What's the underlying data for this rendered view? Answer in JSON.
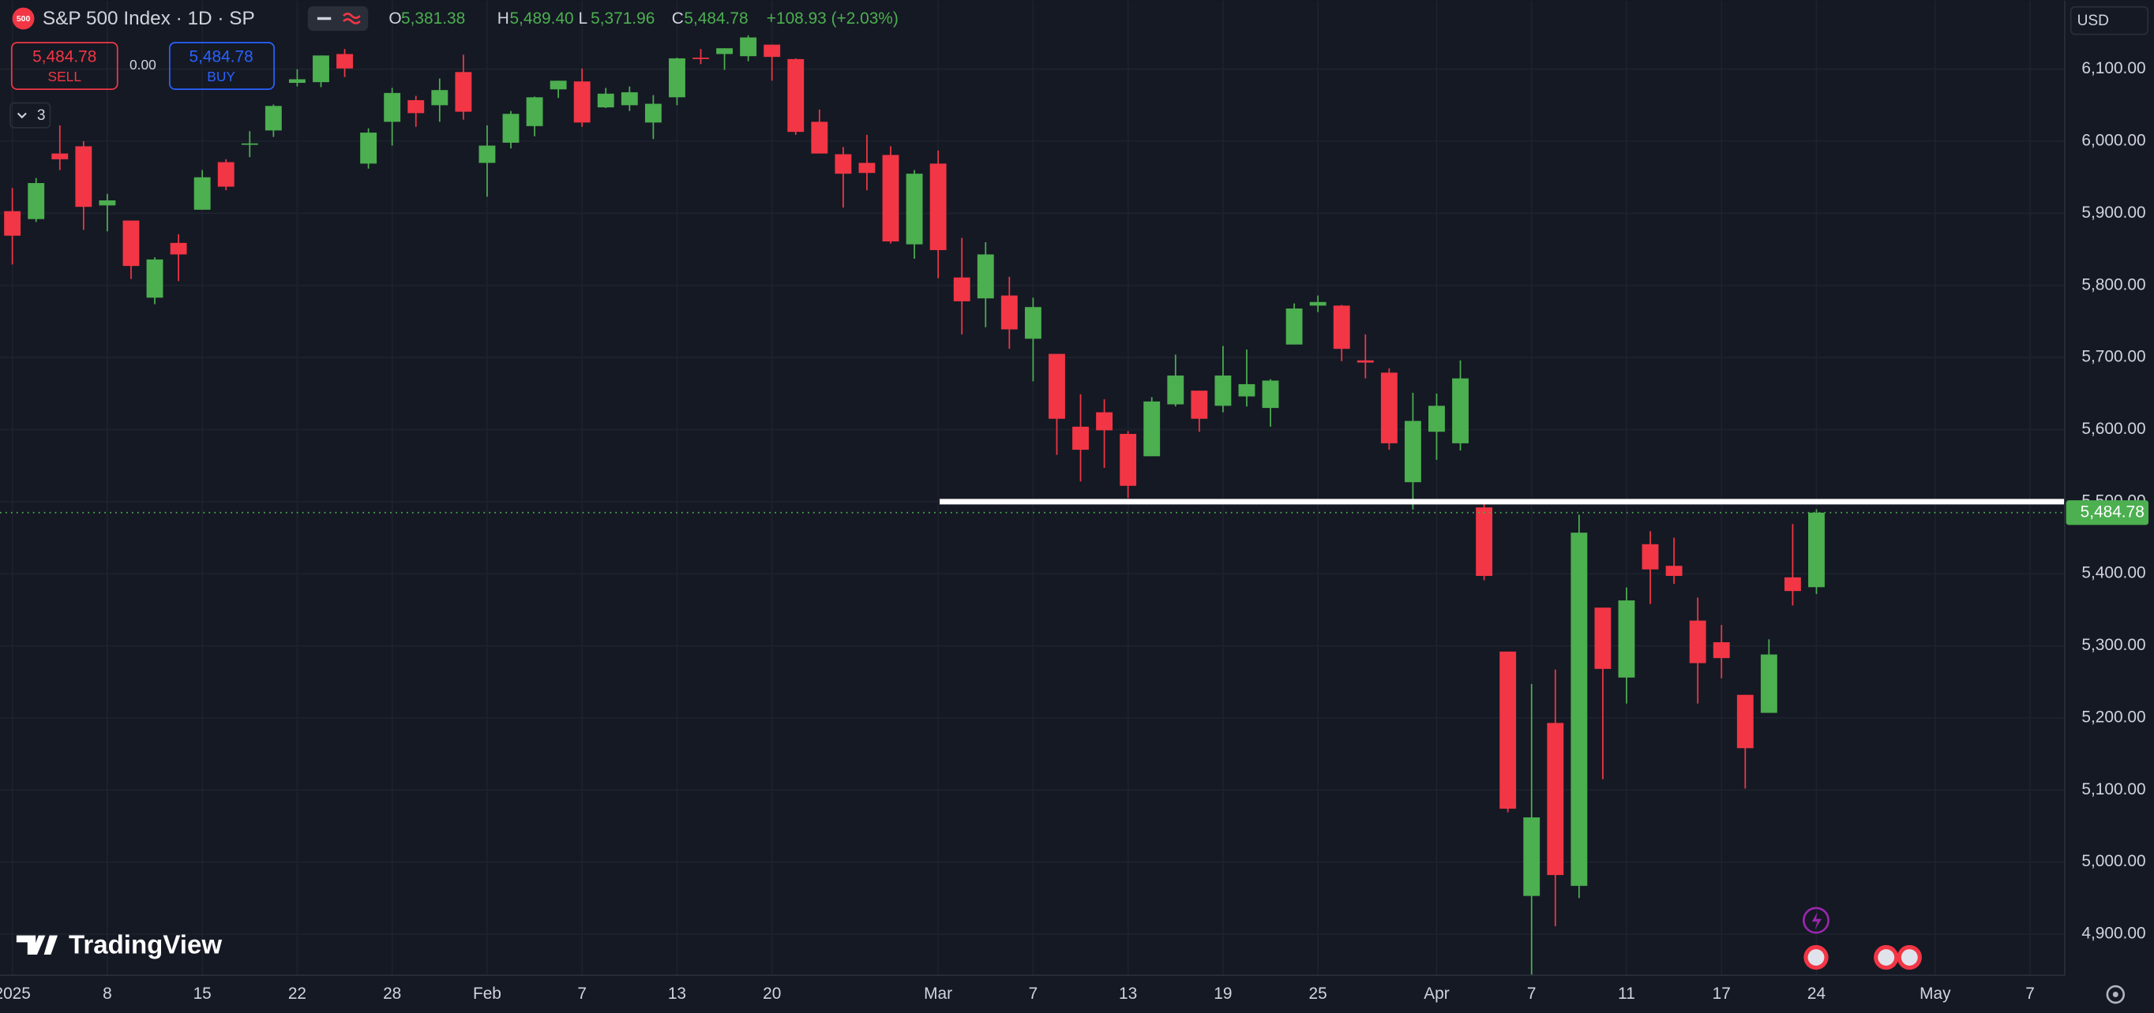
{
  "header": {
    "symbol_badge": "500",
    "title": "S&P 500 Index · 1D · SP",
    "ohlc": [
      {
        "key": "O",
        "value": "5,381.38"
      },
      {
        "key": "H",
        "value": "5,489.40"
      },
      {
        "key": "L",
        "value": "5,371.96"
      },
      {
        "key": "C",
        "value": "5,484.78"
      }
    ],
    "change": "+108.93 (+2.03%)",
    "sell_price": "5,484.78",
    "sell_label": "SELL",
    "spread": "0.00",
    "buy_price": "5,484.78",
    "buy_label": "BUY",
    "indicator_count": "3",
    "currency": "USD",
    "logo": "TradingView"
  },
  "chart_data": {
    "type": "candlestick",
    "categories": [
      "2025",
      null,
      null,
      null,
      "8",
      null,
      null,
      null,
      "15",
      null,
      null,
      null,
      "22",
      null,
      null,
      null,
      "28",
      null,
      null,
      null,
      "Feb",
      null,
      null,
      null,
      "7",
      null,
      null,
      null,
      "13",
      null,
      null,
      null,
      "20",
      null,
      null,
      null,
      null,
      null,
      null,
      "Mar",
      null,
      null,
      null,
      "7",
      null,
      null,
      null,
      "13",
      null,
      null,
      null,
      "19",
      null,
      null,
      null,
      "25",
      null,
      null,
      null,
      null,
      "Apr",
      null,
      null,
      null,
      "7",
      null,
      null,
      null,
      "11",
      null,
      null,
      null,
      "17",
      null,
      null,
      null,
      "24",
      null,
      null,
      null,
      null,
      "May",
      null,
      null,
      null,
      "7"
    ],
    "open": [
      5903,
      5892,
      5983,
      5993,
      5911,
      5890,
      5783,
      5859,
      5905,
      5971,
      5996,
      6015,
      6081,
      6082,
      6121,
      5969,
      6027,
      6057,
      6050,
      6096,
      5970,
      5998,
      6021,
      6072,
      6083,
      6047,
      6050,
      6026,
      6061,
      6116,
      6121,
      6118,
      6134,
      6114,
      6027,
      5982,
      5970,
      5981,
      5857,
      5969,
      5811,
      5782,
      5786,
      5726,
      5705,
      5604,
      5624,
      5594,
      5563,
      5635,
      5654,
      5633,
      5646,
      5630,
      5718,
      5772,
      5772,
      5696,
      5679,
      5527,
      5597,
      5581,
      5492,
      5292,
      4953,
      5193,
      4967,
      5353,
      5256,
      5441,
      5411,
      5335,
      5305,
      5232,
      5207,
      5395,
      5381.38,
      null,
      null,
      null,
      null,
      null,
      null,
      null,
      null,
      null
    ],
    "high": [
      5935,
      5949,
      6022,
      6000,
      5927,
      5890,
      5839,
      5871,
      5960,
      5975,
      6014,
      6051,
      6100,
      6119,
      6128,
      6018,
      6074,
      6063,
      6087,
      6120,
      6022,
      6042,
      6062,
      6084,
      6101,
      6074,
      6076,
      6064,
      6116,
      6128,
      6129,
      6147,
      6134,
      6115,
      6044,
      5992,
      6009,
      5993,
      5960,
      5987,
      5866,
      5860,
      5812,
      5783,
      5705,
      5649,
      5642,
      5598,
      5645,
      5704,
      5654,
      5716,
      5711,
      5670,
      5775,
      5786,
      5773,
      5732,
      5685,
      5651,
      5650,
      5696,
      5500,
      5292,
      5247,
      5267,
      5482,
      5353,
      5381,
      5459,
      5450,
      5367,
      5329,
      5232,
      5309,
      5469,
      5489.4,
      null,
      null,
      null,
      null,
      null,
      null,
      null,
      null,
      null
    ],
    "low": [
      5829,
      5888,
      5960,
      5877,
      5875,
      5809,
      5774,
      5806,
      5905,
      5932,
      5978,
      6006,
      6076,
      6075,
      6089,
      5962,
      5994,
      6020,
      6027,
      6030,
      5923,
      5990,
      6007,
      6060,
      6020,
      6046,
      6042,
      6003,
      6050,
      6107,
      6099,
      6111,
      6084,
      6009,
      5983,
      5908,
      5932,
      5858,
      5837,
      5810,
      5732,
      5742,
      5712,
      5667,
      5565,
      5528,
      5547,
      5505,
      5563,
      5632,
      5597,
      5624,
      5632,
      5604,
      5718,
      5763,
      5695,
      5671,
      5572,
      5489,
      5558,
      5571,
      5391,
      5069,
      4835,
      4911,
      4950,
      5115,
      5220,
      5358,
      5386,
      5220,
      5255,
      5102,
      5207,
      5356,
      5371.96,
      null,
      null,
      null,
      null,
      null,
      null,
      null,
      null,
      null
    ],
    "close": [
      5869,
      5942,
      5975,
      5909,
      5918,
      5827,
      5836,
      5843,
      5950,
      5937,
      5997,
      6049,
      6086,
      6119,
      6101,
      6012,
      6067,
      6039,
      6071,
      6041,
      5994,
      6038,
      6061,
      6084,
      6026,
      6066,
      6068,
      6052,
      6115,
      6115,
      6129,
      6144,
      6117,
      6013,
      5983,
      5955,
      5956,
      5861,
      5955,
      5849,
      5778,
      5843,
      5739,
      5770,
      5615,
      5572,
      5599,
      5522,
      5639,
      5675,
      5615,
      5675,
      5663,
      5668,
      5768,
      5777,
      5712,
      5693,
      5581,
      5612,
      5633,
      5671,
      5397,
      5074,
      5062,
      4982,
      5457,
      5268,
      5363,
      5406,
      5397,
      5276,
      5283,
      5158,
      5288,
      5376,
      5484.78,
      null,
      null,
      null,
      null,
      null,
      null,
      null,
      null,
      null
    ],
    "up_color": "#4caf50",
    "down_color": "#f23645",
    "ylim": [
      4843,
      6195
    ],
    "yticks": [
      {
        "value": 4900,
        "label": "4,900.00"
      },
      {
        "value": 5000,
        "label": "5,000.00"
      },
      {
        "value": 5100,
        "label": "5,100.00"
      },
      {
        "value": 5200,
        "label": "5,200.00"
      },
      {
        "value": 5300,
        "label": "5,300.00"
      },
      {
        "value": 5400,
        "label": "5,400.00"
      },
      {
        "value": 5500,
        "label": "5,500.00"
      },
      {
        "value": 5600,
        "label": "5,600.00"
      },
      {
        "value": 5700,
        "label": "5,700.00"
      },
      {
        "value": 5800,
        "label": "5,800.00"
      },
      {
        "value": 5900,
        "label": "5,900.00"
      },
      {
        "value": 6000,
        "label": "6,000.00"
      },
      {
        "value": 6100,
        "label": "6,100.00"
      }
    ],
    "grid": true,
    "support_line": 5500,
    "last_price": {
      "value": 5484.78,
      "label": "5,484.78"
    }
  }
}
